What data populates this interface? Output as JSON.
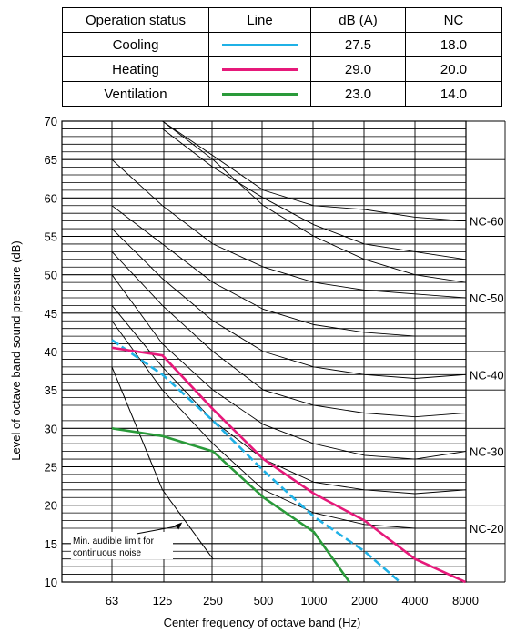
{
  "legend": {
    "headers": [
      "Operation status",
      "Line",
      "dB (A)",
      "NC"
    ],
    "rows": [
      {
        "status": "Cooling",
        "color": "#1fb1e6",
        "dba": "27.5",
        "nc": "18.0"
      },
      {
        "status": "Heating",
        "color": "#e6197a",
        "dba": "29.0",
        "nc": "20.0"
      },
      {
        "status": "Ventilation",
        "color": "#2a9a3a",
        "dba": "23.0",
        "nc": "14.0"
      }
    ]
  },
  "chart_data": {
    "type": "line",
    "ylabel": "Level of octave band sound pressure (dB)",
    "xlabel": "Center frequency of octave band (Hz)",
    "categories": [
      "63",
      "125",
      "250",
      "500",
      "1000",
      "2000",
      "4000",
      "8000"
    ],
    "yticks": [
      "10",
      "15",
      "20",
      "25",
      "30",
      "35",
      "40",
      "45",
      "50",
      "55",
      "60",
      "65",
      "70"
    ],
    "ylim": [
      10,
      70
    ],
    "grid": true,
    "series": [
      {
        "name": "Cooling",
        "color": "#1fb1e6",
        "points": [
          [
            0,
            41.5
          ],
          [
            1,
            37
          ],
          [
            2,
            31
          ],
          [
            3,
            24.5
          ],
          [
            4,
            18.5
          ],
          [
            5,
            14
          ],
          [
            5.7,
            10
          ]
        ]
      },
      {
        "name": "Heating",
        "color": "#e6197a",
        "points": [
          [
            0,
            40.5
          ],
          [
            1,
            39.5
          ],
          [
            2,
            32.5
          ],
          [
            3,
            26
          ],
          [
            4,
            21.5
          ],
          [
            5,
            18
          ],
          [
            6,
            13
          ],
          [
            7,
            10
          ]
        ]
      },
      {
        "name": "Ventilation",
        "color": "#2a9a3a",
        "points": [
          [
            0,
            30
          ],
          [
            1,
            29
          ],
          [
            2,
            27
          ],
          [
            3,
            21
          ],
          [
            4,
            16.5
          ],
          [
            4.7,
            10
          ]
        ]
      }
    ],
    "nc_curves": [
      {
        "label": "",
        "points": [
          [
            1,
            70
          ],
          [
            2,
            65
          ],
          [
            3,
            59
          ],
          [
            4,
            55
          ],
          [
            5,
            52
          ],
          [
            6,
            50
          ],
          [
            7,
            49
          ]
        ]
      },
      {
        "label": "NC-60",
        "points": [
          [
            1,
            70
          ],
          [
            2,
            65.5
          ],
          [
            3,
            61
          ],
          [
            4,
            59
          ],
          [
            5,
            58.5
          ],
          [
            6,
            57.5
          ],
          [
            7,
            57
          ]
        ]
      },
      {
        "label": "",
        "points": [
          [
            1,
            69
          ],
          [
            2,
            64
          ],
          [
            3,
            60
          ],
          [
            4,
            56.5
          ],
          [
            5,
            54
          ],
          [
            6,
            53
          ],
          [
            7,
            52
          ]
        ]
      },
      {
        "label": "NC-50",
        "points": [
          [
            0,
            65
          ],
          [
            1,
            59
          ],
          [
            2,
            54
          ],
          [
            3,
            51
          ],
          [
            4,
            49
          ],
          [
            5,
            48
          ],
          [
            6,
            47.5
          ],
          [
            7,
            47
          ]
        ]
      },
      {
        "label": "",
        "points": [
          [
            0,
            59
          ],
          [
            1,
            54
          ],
          [
            2,
            49
          ],
          [
            3,
            45.5
          ],
          [
            4,
            43.5
          ],
          [
            5,
            42.5
          ],
          [
            6,
            42
          ],
          [
            7,
            42
          ]
        ]
      },
      {
        "label": "NC-40",
        "points": [
          [
            0,
            56
          ],
          [
            1,
            49.5
          ],
          [
            2,
            44
          ],
          [
            3,
            40
          ],
          [
            4,
            38
          ],
          [
            5,
            37
          ],
          [
            6,
            36.5
          ],
          [
            7,
            37
          ]
        ]
      },
      {
        "label": "",
        "points": [
          [
            0,
            53
          ],
          [
            1,
            46
          ],
          [
            2,
            40
          ],
          [
            3,
            35
          ],
          [
            4,
            33
          ],
          [
            5,
            32
          ],
          [
            6,
            31.5
          ],
          [
            7,
            32
          ]
        ]
      },
      {
        "label": "NC-30",
        "points": [
          [
            0,
            50
          ],
          [
            1,
            41
          ],
          [
            2,
            35
          ],
          [
            3,
            30.5
          ],
          [
            4,
            28
          ],
          [
            5,
            26.5
          ],
          [
            6,
            26
          ],
          [
            7,
            27
          ]
        ]
      },
      {
        "label": "",
        "points": [
          [
            0,
            46
          ],
          [
            1,
            38
          ],
          [
            2,
            31
          ],
          [
            3,
            26
          ],
          [
            4,
            23
          ],
          [
            5,
            22
          ],
          [
            6,
            21.5
          ],
          [
            7,
            22
          ]
        ]
      },
      {
        "label": "NC-20",
        "points": [
          [
            0,
            44
          ],
          [
            1,
            35
          ],
          [
            2,
            28
          ],
          [
            3,
            22
          ],
          [
            4,
            19
          ],
          [
            5,
            17.5
          ],
          [
            6,
            17
          ],
          [
            7,
            17
          ]
        ]
      }
    ],
    "audible_limit": {
      "points": [
        [
          0,
          38
        ],
        [
          1,
          22
        ],
        [
          2,
          13
        ]
      ]
    },
    "annotation": {
      "lines": [
        "Min. audible limit for",
        "continuous noise"
      ],
      "arrow_to": [
        1.5,
        18
      ]
    }
  }
}
